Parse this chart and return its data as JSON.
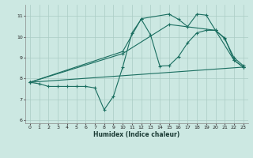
{
  "xlabel": "Humidex (Indice chaleur)",
  "bg_color": "#cce8e2",
  "grid_color": "#aaccc4",
  "line_color": "#1a6e60",
  "xlim": [
    -0.5,
    23.5
  ],
  "ylim": [
    5.85,
    11.55
  ],
  "yticks": [
    6,
    7,
    8,
    9,
    10,
    11
  ],
  "xticks": [
    0,
    1,
    2,
    3,
    4,
    5,
    6,
    7,
    8,
    9,
    10,
    11,
    12,
    13,
    14,
    15,
    16,
    17,
    18,
    19,
    20,
    21,
    22,
    23
  ],
  "series1_x": [
    0,
    1,
    2,
    3,
    4,
    5,
    6,
    7,
    8,
    9,
    10,
    11,
    12,
    13,
    14,
    15,
    16,
    17,
    18,
    19,
    20,
    21,
    22,
    23
  ],
  "series1_y": [
    7.82,
    7.75,
    7.62,
    7.62,
    7.62,
    7.62,
    7.62,
    7.55,
    6.5,
    7.15,
    8.55,
    10.2,
    10.85,
    10.1,
    8.6,
    8.62,
    9.05,
    9.72,
    10.2,
    10.32,
    10.32,
    9.92,
    9.0,
    8.62
  ],
  "series2_x": [
    0,
    10,
    12,
    15,
    16,
    17,
    18,
    19,
    20,
    21,
    22,
    23
  ],
  "series2_y": [
    7.82,
    9.3,
    10.88,
    11.1,
    10.85,
    10.5,
    11.1,
    11.05,
    10.32,
    9.95,
    8.88,
    8.55
  ],
  "series3_x": [
    0,
    23
  ],
  "series3_y": [
    7.82,
    8.55
  ],
  "series4_x": [
    0,
    10,
    15,
    20,
    22,
    23
  ],
  "series4_y": [
    7.82,
    9.2,
    10.6,
    10.32,
    8.88,
    8.55
  ]
}
